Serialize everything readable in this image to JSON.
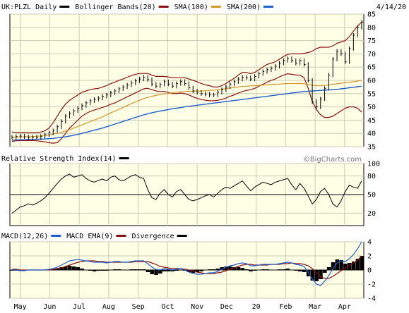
{
  "chart_data": {
    "type": "line",
    "ticker": "UK:PLZL",
    "date": "4/14/20",
    "watermark": "©BigCharts.com",
    "x_months": [
      "May",
      "Jun",
      "Jul",
      "Aug",
      "Sep",
      "Oct",
      "Nov",
      "Dec",
      "20",
      "Feb",
      "Mar",
      "Apr"
    ],
    "price_panel": {
      "legend": [
        {
          "text": "UK:PLZL Daily",
          "color": "#000000"
        },
        {
          "text": "Bollinger Bands(20)",
          "color": "#8b1010"
        },
        {
          "text": "SMA(100)",
          "color": "#d4962a"
        },
        {
          "text": "SMA(200)",
          "color": "#1e5fd0"
        }
      ],
      "ylim": [
        35,
        85
      ],
      "yticks": [
        "35",
        "40",
        "45",
        "50",
        "55",
        "60",
        "65",
        "70",
        "75",
        "80",
        "85"
      ],
      "close": [
        38.5,
        38.8,
        39,
        38.7,
        38.3,
        38.6,
        38.4,
        38.9,
        39.5,
        40.2,
        41,
        42.5,
        44.5,
        46.5,
        47.5,
        48.5,
        49.5,
        50.5,
        51.5,
        52.3,
        52.8,
        53.3,
        54,
        54.5,
        55.3,
        56,
        56.8,
        57.5,
        58.3,
        59,
        59.8,
        60.5,
        61.2,
        60.3,
        58.6,
        57.8,
        58.5,
        59.5,
        58.6,
        57.8,
        58.8,
        59.6,
        58.8,
        57.2,
        56,
        55.5,
        55,
        54.8,
        54.5,
        54.5,
        55.5,
        56.5,
        57.5,
        58.6,
        59.5,
        60.5,
        61.2,
        61,
        60.5,
        61.5,
        62.5,
        63.3,
        64,
        64.5,
        65.3,
        66.5,
        67.5,
        68.2,
        67.5,
        66.5,
        67.5,
        66,
        60,
        52,
        50,
        53,
        57,
        62,
        68,
        71,
        70,
        67,
        72,
        77,
        80,
        82
      ],
      "bb_upper": [
        40.5,
        40.4,
        40.3,
        40.3,
        40.2,
        40.2,
        40.3,
        40.5,
        41,
        42,
        44,
        46.5,
        49,
        51,
        52.5,
        53.5,
        54.5,
        55.5,
        56,
        56.5,
        56.8,
        57,
        57.5,
        58,
        58.8,
        59.3,
        60,
        60.5,
        61.2,
        61.8,
        62.3,
        62.6,
        62.6,
        62.6,
        62,
        61.5,
        61.5,
        61.5,
        61.3,
        61,
        61,
        61,
        61,
        60.5,
        60,
        59.5,
        58.8,
        58.3,
        58,
        57.5,
        57.5,
        58,
        58.8,
        59.8,
        60.8,
        62,
        63,
        63,
        62.5,
        63,
        64,
        65,
        66,
        66.5,
        67,
        68,
        69,
        69.8,
        70,
        70,
        70,
        70.2,
        70.5,
        71,
        72,
        72.5,
        72.5,
        72.5,
        73,
        74,
        74.5,
        75,
        76.5,
        78.5,
        80.5,
        82
      ],
      "bb_lower": [
        37,
        37.2,
        37.3,
        37.3,
        37.3,
        37.3,
        37.2,
        37,
        36.8,
        36.5,
        36.3,
        36.5,
        38,
        40,
        42,
        43.5,
        45,
        46.5,
        47.5,
        48.3,
        48.8,
        49.3,
        49.8,
        50.3,
        51,
        51.5,
        52.3,
        53,
        53.8,
        54.5,
        55.3,
        56,
        56.8,
        57,
        56.5,
        56,
        55.8,
        55.8,
        55.5,
        55,
        55,
        55.2,
        55,
        54.5,
        53.8,
        53.2,
        52.8,
        52.5,
        52.3,
        52.3,
        52.5,
        52.8,
        53.3,
        54,
        54.5,
        55.2,
        55.8,
        56.2,
        56.5,
        57,
        57.8,
        58.5,
        59.3,
        60,
        60.5,
        61.3,
        62,
        62.5,
        62.3,
        62,
        62,
        61,
        57,
        52,
        49,
        47,
        46,
        46,
        46.5,
        47.5,
        48.5,
        49.5,
        50,
        50,
        49.5,
        48
      ],
      "sma100": [
        38.6,
        38.6,
        38.7,
        38.7,
        38.8,
        38.8,
        38.9,
        39,
        39.2,
        39.4,
        39.7,
        40,
        40.4,
        40.9,
        41.4,
        42,
        42.6,
        43.2,
        43.8,
        44.4,
        45,
        45.6,
        46.3,
        47,
        47.7,
        48.4,
        49.1,
        49.8,
        50.5,
        51.2,
        51.9,
        52.5,
        53.1,
        53.6,
        54,
        54.3,
        54.6,
        54.9,
        55.1,
        55.3,
        55.5,
        55.7,
        55.8,
        55.9,
        55.9,
        56,
        56,
        56.1,
        56.2,
        56.3,
        56.5,
        56.7,
        56.9,
        57.1,
        57.3,
        57.5,
        57.7,
        57.8,
        57.9,
        58,
        58.1,
        58.2,
        58.3,
        58.4,
        58.5,
        58.6,
        58.7,
        58.8,
        58.8,
        58.8,
        58.8,
        58.7,
        58.5,
        58.2,
        58,
        58,
        58.1,
        58.3,
        58.5,
        58.7,
        58.9,
        59.1,
        59.3,
        59.5,
        59.7,
        60
      ],
      "sma200": [
        37.5,
        37.5,
        37.6,
        37.6,
        37.7,
        37.7,
        37.8,
        37.8,
        37.9,
        38,
        38.1,
        38.3,
        38.5,
        38.7,
        39,
        39.3,
        39.6,
        40,
        40.4,
        40.8,
        41.2,
        41.6,
        42,
        42.5,
        43,
        43.5,
        44,
        44.5,
        45,
        45.5,
        46,
        46.5,
        47,
        47.4,
        47.8,
        48.1,
        48.4,
        48.7,
        49,
        49.3,
        49.5,
        49.7,
        50,
        50.2,
        50.4,
        50.6,
        50.8,
        51,
        51.2,
        51.4,
        51.6,
        51.8,
        52,
        52.2,
        52.4,
        52.6,
        52.8,
        53,
        53.2,
        53.4,
        53.6,
        53.8,
        54,
        54.2,
        54.4,
        54.6,
        54.8,
        55,
        55.2,
        55.4,
        55.6,
        55.8,
        55.9,
        56,
        56.1,
        56.2,
        56.3,
        56.4,
        56.5,
        56.6,
        56.8,
        57,
        57.2,
        57.4,
        57.6,
        57.8
      ]
    },
    "rsi_panel": {
      "legend": [
        {
          "text": "Relative Strength Index(14)",
          "color": "#000000"
        }
      ],
      "ylim": [
        0,
        100
      ],
      "yticks": [
        "20",
        "50",
        "80",
        "100"
      ],
      "reference": 50,
      "values": [
        20,
        25,
        30,
        32,
        35,
        33,
        36,
        40,
        45,
        52,
        60,
        68,
        75,
        80,
        83,
        78,
        80,
        82,
        76,
        72,
        70,
        73,
        75,
        72,
        78,
        80,
        74,
        72,
        76,
        80,
        82,
        78,
        76,
        58,
        45,
        42,
        52,
        58,
        50,
        46,
        55,
        58,
        50,
        42,
        40,
        42,
        45,
        48,
        50,
        46,
        52,
        58,
        62,
        60,
        64,
        68,
        72,
        64,
        56,
        62,
        66,
        70,
        68,
        66,
        70,
        72,
        74,
        76,
        66,
        58,
        68,
        60,
        48,
        35,
        42,
        55,
        60,
        50,
        35,
        30,
        40,
        55,
        65,
        62,
        60,
        72
      ]
    },
    "macd_panel": {
      "legend": [
        {
          "text": "MACD(12,26)",
          "color": "#1e5fd0"
        },
        {
          "text": "MACD EMA(9)",
          "color": "#8b1010"
        },
        {
          "text": "Divergence",
          "color": "#000000"
        }
      ],
      "ylim": [
        -4,
        4
      ],
      "yticks": [
        "-4",
        "-2",
        "0",
        "2",
        "4"
      ],
      "macd": [
        0,
        0,
        -0.1,
        -0.1,
        0,
        0,
        0,
        0,
        0,
        0.1,
        0.2,
        0.4,
        0.7,
        1,
        1.3,
        1.4,
        1.5,
        1.4,
        1.3,
        1.2,
        1.1,
        1.1,
        1.1,
        1,
        1.1,
        1.2,
        1.2,
        1.1,
        1.1,
        1.2,
        1.3,
        1.3,
        1.3,
        0.9,
        0.4,
        0.1,
        0,
        0.2,
        0.1,
        0,
        0.1,
        0.2,
        0,
        -0.3,
        -0.5,
        -0.6,
        -0.6,
        -0.5,
        -0.4,
        -0.4,
        -0.2,
        0.1,
        0.4,
        0.6,
        0.7,
        0.9,
        1,
        0.9,
        0.6,
        0.6,
        0.7,
        0.8,
        0.8,
        0.8,
        0.8,
        0.9,
        1,
        1.1,
        1,
        0.8,
        0.7,
        0.5,
        -0.3,
        -1.3,
        -2,
        -2.2,
        -1.6,
        -0.8,
        0.2,
        1,
        1.3,
        1.2,
        1.6,
        2.2,
        3,
        4
      ],
      "signal": [
        0.1,
        0.1,
        0,
        0,
        0,
        0,
        0,
        0,
        0,
        0,
        0.1,
        0.2,
        0.3,
        0.5,
        0.7,
        0.9,
        1.1,
        1.2,
        1.3,
        1.3,
        1.3,
        1.2,
        1.2,
        1.1,
        1.1,
        1.1,
        1.1,
        1.1,
        1.1,
        1.1,
        1.2,
        1.2,
        1.2,
        1.2,
        1,
        0.8,
        0.5,
        0.4,
        0.3,
        0.2,
        0.2,
        0.2,
        0.1,
        0,
        -0.1,
        -0.3,
        -0.4,
        -0.5,
        -0.5,
        -0.5,
        -0.4,
        -0.3,
        -0.1,
        0.1,
        0.3,
        0.5,
        0.7,
        0.8,
        0.8,
        0.7,
        0.7,
        0.7,
        0.7,
        0.8,
        0.8,
        0.8,
        0.9,
        0.9,
        1,
        0.9,
        0.9,
        0.8,
        0.6,
        0.2,
        -0.4,
        -0.9,
        -1.2,
        -1.2,
        -0.9,
        -0.5,
        -0.1,
        0.3,
        0.6,
        1,
        1.4,
        2
      ]
    }
  }
}
